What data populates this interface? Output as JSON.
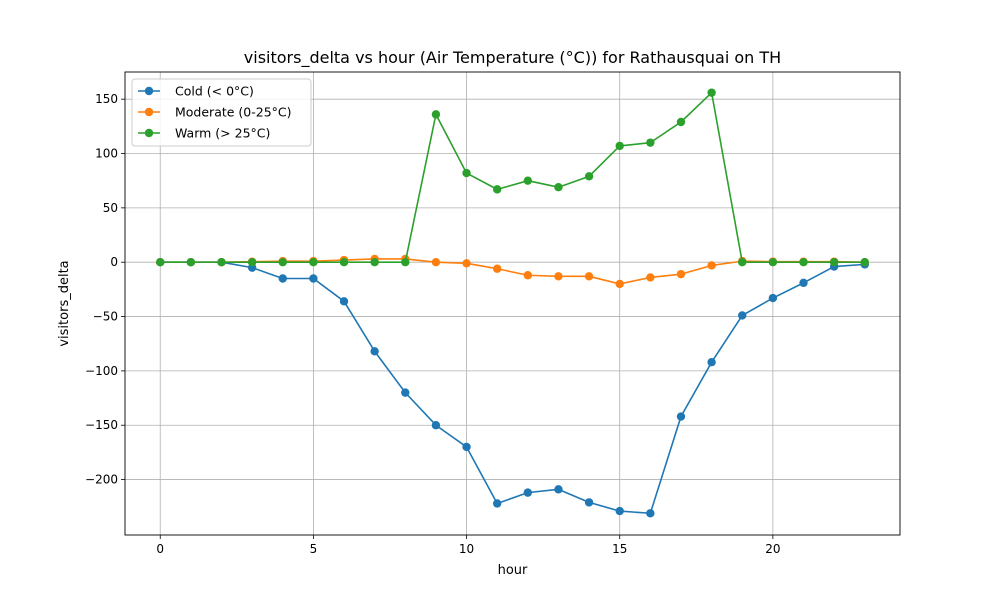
{
  "chart_data": {
    "type": "line",
    "title": "visitors_delta vs hour (Air Temperature (°C)) for Rathausquai on TH",
    "xlabel": "hour",
    "ylabel": "visitors_delta",
    "xlim": [
      -1.15,
      24.15
    ],
    "ylim": [
      -251,
      175
    ],
    "x_ticks": [
      0,
      5,
      10,
      15,
      20
    ],
    "y_ticks": [
      -200,
      -150,
      -100,
      -50,
      0,
      50,
      100,
      150
    ],
    "y_tick_labels": [
      "−200",
      "−150",
      "−100",
      "−50",
      "0",
      "50",
      "100",
      "150"
    ],
    "grid": true,
    "legend_position": "top-left",
    "x": [
      0,
      1,
      2,
      3,
      4,
      5,
      6,
      7,
      8,
      9,
      10,
      11,
      12,
      13,
      14,
      15,
      16,
      17,
      18,
      19,
      20,
      21,
      22,
      23
    ],
    "series": [
      {
        "name": "Cold (< 0°C)",
        "color": "#1f77b4",
        "values": [
          0,
          0,
          0,
          -5,
          -15,
          -15,
          -36,
          -82,
          -120,
          -150,
          -170,
          -222,
          -212,
          -209,
          -221,
          -229,
          -231,
          -142,
          -92,
          -49,
          -33,
          -19,
          -4,
          -2
        ]
      },
      {
        "name": "Moderate (0-25°C)",
        "color": "#ff7f0e",
        "values": [
          0,
          0,
          0,
          0.5,
          1,
          1,
          2,
          3,
          3,
          0,
          -1,
          -6,
          -12,
          -13,
          -13,
          -20,
          -14,
          -11,
          -3,
          1,
          0.5,
          0.5,
          0.5,
          0
        ]
      },
      {
        "name": "Warm (> 25°C)",
        "color": "#2ca02c",
        "values": [
          0,
          0,
          0,
          0,
          0,
          0,
          0,
          0,
          0,
          136,
          82,
          67,
          75,
          69,
          79,
          107,
          110,
          129,
          156,
          0,
          0,
          0,
          0,
          0
        ]
      }
    ]
  }
}
